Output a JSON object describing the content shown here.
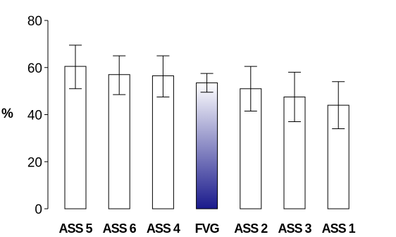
{
  "chart_data": {
    "type": "bar",
    "title": "",
    "xlabel": "",
    "ylabel": "%",
    "ylim": [
      0,
      80
    ],
    "yticks": [
      "0",
      "20",
      "40",
      "60",
      "80"
    ],
    "grid": false,
    "legend": "none",
    "categories": [
      "ASS 5",
      "ASS 6",
      "ASS 4",
      "FVG",
      "ASS 2",
      "ASS 3",
      "ASS 1"
    ],
    "values": [
      60.5,
      57,
      56.5,
      53.5,
      51,
      47.5,
      44
    ],
    "error_upper": [
      69.5,
      65,
      65,
      57.5,
      60.5,
      58,
      54
    ],
    "error_lower": [
      51,
      48.5,
      47.5,
      49.5,
      41.5,
      37,
      34
    ],
    "highlight_category": "FVG",
    "colors": {
      "bar_fill": "#ffffff",
      "bar_stroke": "#000000",
      "highlight_gradient_top": "#ffffff",
      "highlight_gradient_bottom": "#1a1a8c",
      "axis": "#000000"
    }
  }
}
